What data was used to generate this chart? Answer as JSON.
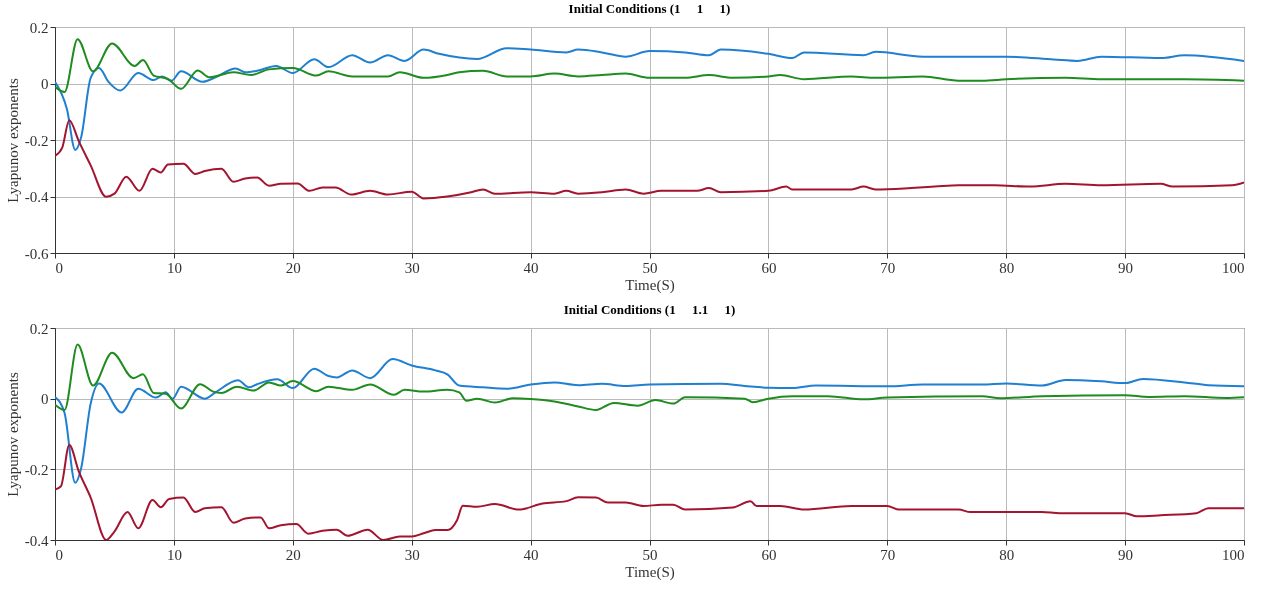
{
  "chart_data": [
    {
      "type": "line",
      "title": "Initial Conditions (1     1     1)",
      "xlabel": "Time(S)",
      "ylabel": "Lyapunov exponents",
      "xlim": [
        0,
        100
      ],
      "xticks": [
        0,
        10,
        20,
        30,
        40,
        50,
        60,
        70,
        80,
        90,
        100
      ],
      "ylim": [
        -0.6,
        0.2
      ],
      "yticks": [
        -0.6,
        -0.4,
        -0.2,
        0,
        0.2
      ],
      "grid": true,
      "marker": "none",
      "line_style": "solid",
      "series": [
        {
          "color": "#1f7fd0",
          "x": [
            0,
            1,
            1.7,
            2.2,
            3,
            3.7,
            4.5,
            5.5,
            7,
            8.3,
            9,
            9.8,
            10.6,
            12.4,
            13.5,
            15.2,
            16,
            17,
            18.6,
            20,
            21.8,
            23,
            25,
            26.5,
            28,
            29.4,
            31,
            32.3,
            35.5,
            38,
            40,
            43,
            44,
            46,
            48,
            50,
            53,
            55,
            56,
            60,
            62,
            63,
            68,
            69,
            73,
            80,
            84,
            86,
            88,
            93,
            95,
            100
          ],
          "values": [
            0.006,
            -0.09,
            -0.235,
            -0.19,
            0.02,
            0.055,
            0.006,
            -0.025,
            0.037,
            0.012,
            0.025,
            0.01,
            0.043,
            0.006,
            0.022,
            0.053,
            0.04,
            0.045,
            0.062,
            0.037,
            0.086,
            0.058,
            0.1,
            0.074,
            0.1,
            0.08,
            0.12,
            0.105,
            0.087,
            0.125,
            0.12,
            0.11,
            0.12,
            0.11,
            0.095,
            0.115,
            0.11,
            0.1,
            0.12,
            0.105,
            0.09,
            0.11,
            0.1,
            0.112,
            0.095,
            0.095,
            0.085,
            0.08,
            0.095,
            0.09,
            0.1,
            0.08
          ]
        },
        {
          "color": "#1e8c1e",
          "x": [
            0,
            0.8,
            1.9,
            3.2,
            4.8,
            6.7,
            7.4,
            8.3,
            9.5,
            10.6,
            12,
            13,
            15,
            16.5,
            18,
            20,
            22,
            23,
            25,
            28,
            29,
            31,
            33,
            34,
            36,
            38,
            40,
            42,
            44,
            46,
            48,
            50,
            53,
            55,
            57,
            60,
            61,
            63,
            67,
            69,
            73,
            76,
            78,
            80,
            85,
            88,
            95,
            100
          ],
          "values": [
            -0.012,
            -0.03,
            0.157,
            0.043,
            0.142,
            0.062,
            0.083,
            0.028,
            0.016,
            -0.019,
            0.046,
            0.022,
            0.04,
            0.03,
            0.05,
            0.055,
            0.028,
            0.043,
            0.025,
            0.025,
            0.04,
            0.02,
            0.03,
            0.04,
            0.045,
            0.025,
            0.025,
            0.035,
            0.025,
            0.03,
            0.035,
            0.02,
            0.02,
            0.03,
            0.02,
            0.025,
            0.03,
            0.015,
            0.025,
            0.02,
            0.025,
            0.01,
            0.01,
            0.015,
            0.02,
            0.015,
            0.015,
            0.01
          ]
        },
        {
          "color": "#a3142f",
          "x": [
            0,
            0.6,
            1.2,
            2,
            3,
            4.3,
            5,
            6,
            7.1,
            8.2,
            8.9,
            9.5,
            10.8,
            11.8,
            12.6,
            14,
            15,
            16,
            17,
            18,
            19,
            20.4,
            21.4,
            22.5,
            23.6,
            24.9,
            26.5,
            28,
            30,
            31,
            33,
            35,
            36,
            37,
            40,
            42,
            43,
            44,
            46,
            48,
            49.5,
            51,
            54,
            55,
            56,
            60,
            61.5,
            62,
            67,
            68,
            69,
            72,
            74,
            76,
            79,
            82,
            85,
            88,
            93,
            94,
            99,
            100
          ],
          "values": [
            -0.256,
            -0.228,
            -0.13,
            -0.204,
            -0.29,
            -0.401,
            -0.39,
            -0.33,
            -0.38,
            -0.302,
            -0.315,
            -0.287,
            -0.284,
            -0.32,
            -0.31,
            -0.302,
            -0.348,
            -0.336,
            -0.333,
            -0.362,
            -0.355,
            -0.354,
            -0.38,
            -0.368,
            -0.368,
            -0.393,
            -0.38,
            -0.393,
            -0.383,
            -0.407,
            -0.4,
            -0.385,
            -0.375,
            -0.39,
            -0.385,
            -0.39,
            -0.38,
            -0.39,
            -0.385,
            -0.375,
            -0.39,
            -0.38,
            -0.38,
            -0.37,
            -0.385,
            -0.38,
            -0.365,
            -0.375,
            -0.375,
            -0.365,
            -0.375,
            -0.37,
            -0.365,
            -0.36,
            -0.36,
            -0.365,
            -0.355,
            -0.36,
            -0.355,
            -0.365,
            -0.36,
            -0.35
          ]
        }
      ]
    },
    {
      "type": "line",
      "title": "Initial Conditions (1     1.1     1)",
      "xlabel": "Time(S)",
      "ylabel": "Lyapunov exponents",
      "xlim": [
        0,
        100
      ],
      "xticks": [
        0,
        10,
        20,
        30,
        40,
        50,
        60,
        70,
        80,
        90,
        100
      ],
      "ylim": [
        -0.4,
        0.2
      ],
      "yticks": [
        -0.4,
        -0.2,
        0,
        0.2
      ],
      "grid": true,
      "marker": "none",
      "line_style": "solid",
      "series": [
        {
          "color": "#1f7fd0",
          "x": [
            0,
            0.8,
            1.7,
            2.2,
            3,
            3.7,
            5.6,
            7,
            8.5,
            9.3,
            9.9,
            10.6,
            12.6,
            13.5,
            15.4,
            16.3,
            17,
            18.7,
            20,
            21.8,
            23,
            23.7,
            25,
            26.5,
            28.4,
            30,
            32,
            33,
            34,
            36,
            38,
            40,
            42,
            44,
            46,
            48,
            50,
            56,
            58,
            60,
            62,
            64,
            70,
            73,
            78,
            80,
            83,
            85,
            88,
            90,
            91.5,
            95,
            97,
            100
          ],
          "values": [
            0.005,
            -0.04,
            -0.238,
            -0.197,
            -0.014,
            0.043,
            -0.039,
            0.028,
            0.003,
            0.018,
            0,
            0.034,
            0,
            0.018,
            0.052,
            0.032,
            0.041,
            0.055,
            0.03,
            0.085,
            0.064,
            0.06,
            0.08,
            0.058,
            0.112,
            0.094,
            0.08,
            0.069,
            0.037,
            0.032,
            0.028,
            0.04,
            0.046,
            0.038,
            0.042,
            0.036,
            0.04,
            0.042,
            0.036,
            0.031,
            0.03,
            0.037,
            0.035,
            0.04,
            0.04,
            0.043,
            0.037,
            0.053,
            0.049,
            0.044,
            0.056,
            0.046,
            0.038,
            0.035
          ]
        },
        {
          "color": "#1e8c1e",
          "x": [
            0,
            0.8,
            1.9,
            3.2,
            4.8,
            6.6,
            7.4,
            8.3,
            9.3,
            10.6,
            12.2,
            13.3,
            14,
            15.3,
            16.7,
            18,
            19,
            20,
            22,
            23,
            25,
            26.5,
            28.5,
            29.4,
            31,
            33,
            34,
            34.6,
            35.5,
            37,
            38.5,
            40,
            42,
            44,
            45.5,
            47,
            49,
            50.5,
            52,
            53,
            58,
            58.7,
            60,
            62,
            65,
            68,
            70,
            78,
            79.5,
            83,
            90,
            92,
            95,
            98.5,
            100
          ],
          "values": [
            -0.017,
            -0.032,
            0.153,
            0.037,
            0.13,
            0.058,
            0.069,
            0.016,
            0.014,
            -0.028,
            0.041,
            0.02,
            0.016,
            0.034,
            0.023,
            0.046,
            0.037,
            0.05,
            0.021,
            0.034,
            0.025,
            0.04,
            0.011,
            0.025,
            0.02,
            0.025,
            0.018,
            -0.006,
            0,
            -0.011,
            0.001,
            -0.001,
            -0.008,
            -0.022,
            -0.032,
            -0.012,
            -0.02,
            -0.004,
            -0.014,
            0.004,
            0,
            -0.01,
            0,
            0.007,
            0.007,
            -0.002,
            0.003,
            0.007,
            0.001,
            0.007,
            0.01,
            0.005,
            0.007,
            0.002,
            0.004
          ]
        },
        {
          "color": "#a3142f",
          "x": [
            0,
            0.5,
            1.2,
            2,
            3,
            4.3,
            5,
            6.1,
            7,
            8.2,
            8.9,
            9.6,
            10.8,
            11.8,
            12.6,
            14,
            15,
            16,
            17.3,
            18,
            19,
            20.3,
            21.3,
            22.5,
            23.7,
            24.6,
            26.3,
            27.6,
            29,
            30,
            31,
            32,
            33,
            33.8,
            34.3,
            35.5,
            37,
            39,
            41,
            43,
            44,
            45.5,
            46.5,
            48,
            49.5,
            51,
            52,
            53,
            57,
            58.5,
            59,
            61,
            63,
            67,
            70,
            71,
            76,
            77,
            83,
            84.5,
            90,
            91,
            93,
            96,
            97,
            100
          ],
          "values": [
            -0.257,
            -0.248,
            -0.131,
            -0.206,
            -0.28,
            -0.4,
            -0.376,
            -0.321,
            -0.367,
            -0.287,
            -0.307,
            -0.284,
            -0.28,
            -0.321,
            -0.31,
            -0.307,
            -0.351,
            -0.339,
            -0.336,
            -0.367,
            -0.358,
            -0.355,
            -0.382,
            -0.374,
            -0.371,
            -0.388,
            -0.371,
            -0.4,
            -0.39,
            -0.39,
            -0.381,
            -0.372,
            -0.372,
            -0.345,
            -0.303,
            -0.306,
            -0.298,
            -0.314,
            -0.297,
            -0.29,
            -0.279,
            -0.28,
            -0.294,
            -0.294,
            -0.304,
            -0.3,
            -0.3,
            -0.314,
            -0.308,
            -0.29,
            -0.304,
            -0.304,
            -0.314,
            -0.304,
            -0.304,
            -0.314,
            -0.314,
            -0.321,
            -0.321,
            -0.324,
            -0.324,
            -0.333,
            -0.33,
            -0.324,
            -0.31,
            -0.31
          ]
        }
      ]
    }
  ]
}
